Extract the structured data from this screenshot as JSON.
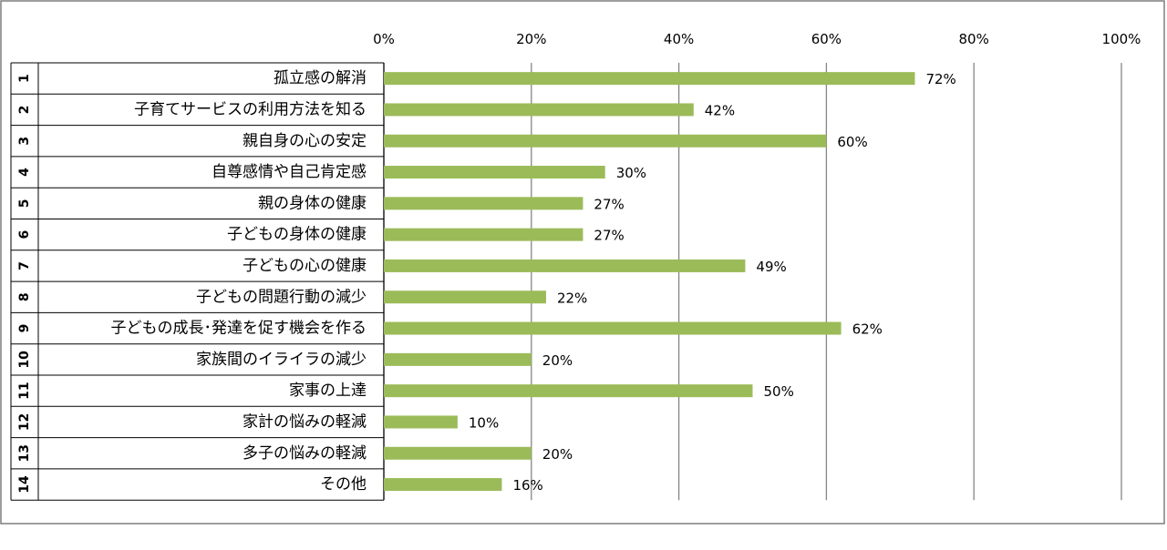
{
  "chart_data": {
    "type": "bar",
    "orientation": "horizontal",
    "title": "",
    "xlabel": "",
    "ylabel": "",
    "xlim": [
      0,
      100
    ],
    "ticks": [
      "0%",
      "20%",
      "40%",
      "60%",
      "80%",
      "100%"
    ],
    "tick_values": [
      0,
      20,
      40,
      60,
      80,
      100
    ],
    "grid": true,
    "legend": "none",
    "bar_color": "#9BBB59",
    "rows": [
      {
        "number": "1",
        "category": "孤立感の解消",
        "value": 72,
        "label": "72%"
      },
      {
        "number": "2",
        "category": "子育てサービスの利用方法を知る",
        "value": 42,
        "label": "42%"
      },
      {
        "number": "3",
        "category": "親自身の心の安定",
        "value": 60,
        "label": "60%"
      },
      {
        "number": "4",
        "category": "自尊感情や自己肯定感",
        "value": 30,
        "label": "30%"
      },
      {
        "number": "5",
        "category": "親の身体の健康",
        "value": 27,
        "label": "27%"
      },
      {
        "number": "6",
        "category": "子どもの身体の健康",
        "value": 27,
        "label": "27%"
      },
      {
        "number": "7",
        "category": "子どもの心の健康",
        "value": 49,
        "label": "49%"
      },
      {
        "number": "8",
        "category": "子どもの問題行動の減少",
        "value": 22,
        "label": "22%"
      },
      {
        "number": "9",
        "category": "子どもの成長･発達を促す機会を作る",
        "value": 62,
        "label": "62%"
      },
      {
        "number": "10",
        "category": "家族間のイライラの減少",
        "value": 20,
        "label": "20%"
      },
      {
        "number": "11",
        "category": "家事の上達",
        "value": 50,
        "label": "50%"
      },
      {
        "number": "12",
        "category": "家計の悩みの軽減",
        "value": 10,
        "label": "10%"
      },
      {
        "number": "13",
        "category": "多子の悩みの軽減",
        "value": 20,
        "label": "20%"
      },
      {
        "number": "14",
        "category": "その他",
        "value": 16,
        "label": "16%"
      }
    ]
  }
}
